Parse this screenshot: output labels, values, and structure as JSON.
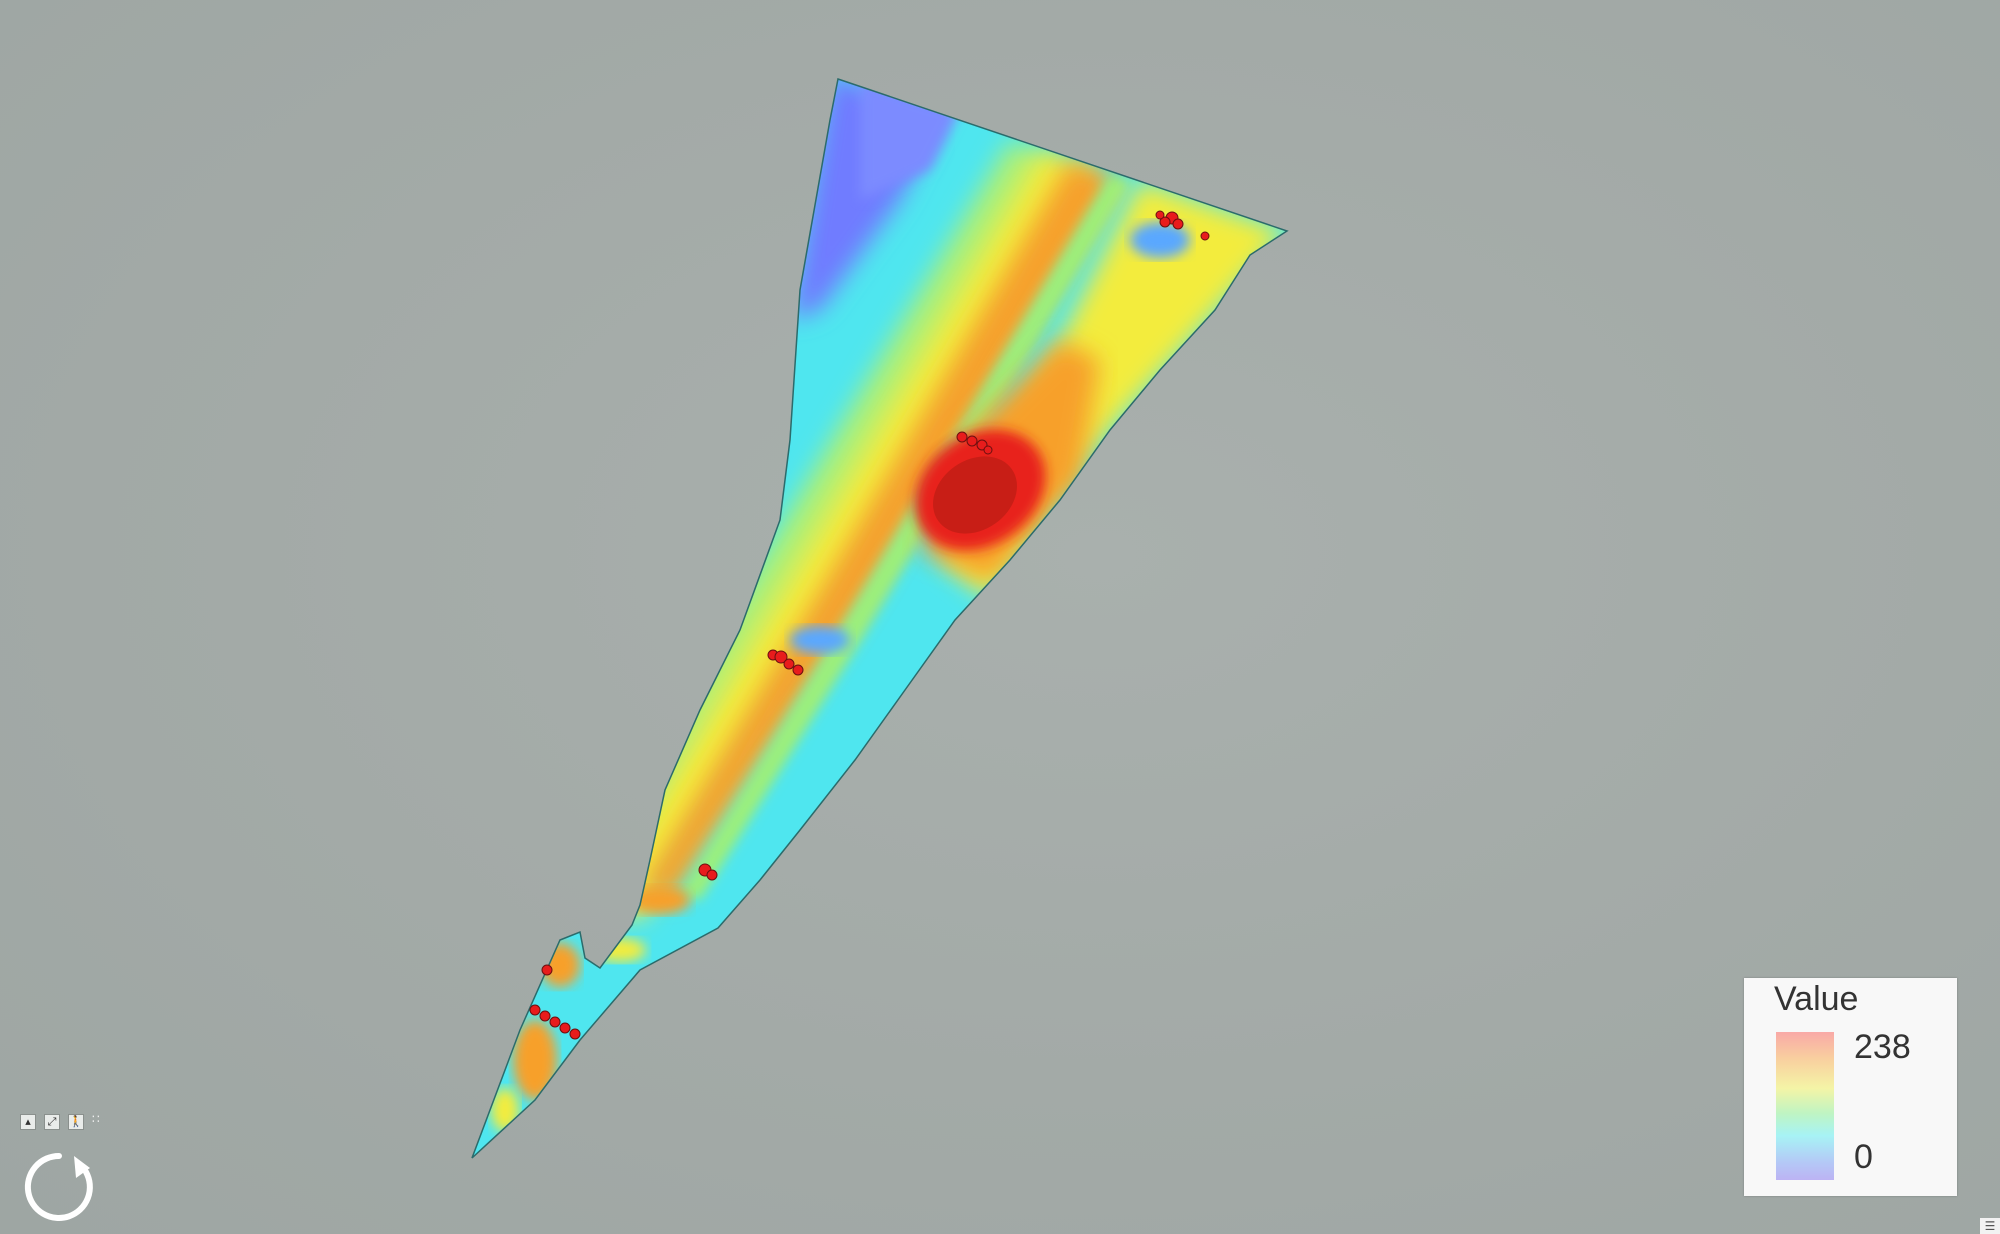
{
  "legend": {
    "title": "Value",
    "max_label": "238",
    "min_label": "0",
    "ramp_colors": [
      "#f9a9a7",
      "#f9cf9f",
      "#f4f4a6",
      "#bff4c3",
      "#a7f3f5",
      "#b4c9f6",
      "#bcb3f4"
    ]
  },
  "map": {
    "background_color": "#a3aaa7",
    "raster_palette": {
      "low": "#6f7cff",
      "cyan": "#49e8f0",
      "green": "#9cf07a",
      "yellow": "#f3ec3c",
      "orange": "#f7a02a",
      "high": "#e8241b"
    },
    "marker_color": "#e81c1c"
  },
  "icons": {
    "nav_up": "chevron-up-icon",
    "nav_full_extent": "full-extent-icon",
    "nav_person": "person-icon",
    "nav_more": "grip-icon",
    "rotate": "rotate-arrow-icon",
    "menu": "menu-icon"
  }
}
